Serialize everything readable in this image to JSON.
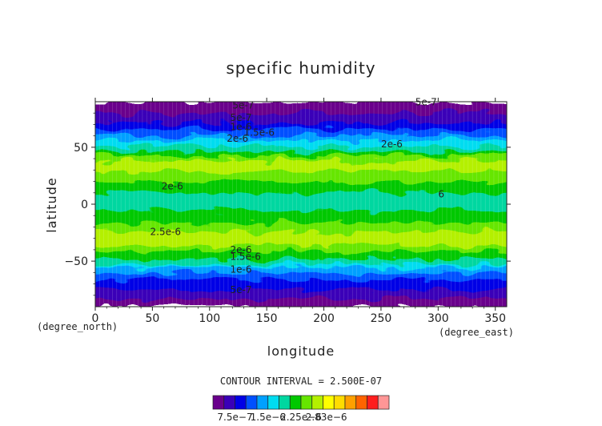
{
  "chart_data": {
    "type": "heatmap",
    "title": "specific humidity",
    "xlabel": "longitude",
    "ylabel": "latitude",
    "x_unit": "(degree_east)",
    "y_unit": "(degree_north)",
    "xlim": [
      0,
      360
    ],
    "ylim": [
      -90,
      90
    ],
    "x_ticks": [
      0,
      50,
      100,
      150,
      200,
      250,
      300,
      350
    ],
    "y_ticks": [
      50,
      0,
      -50
    ],
    "contour_interval_text": "CONTOUR INTERVAL = 2.500E-07",
    "colorbar": {
      "colors": [
        "#6a008c",
        "#3a00b8",
        "#0000e6",
        "#0050ff",
        "#00a0ff",
        "#00dcf0",
        "#00d7a0",
        "#00c800",
        "#66e600",
        "#b4f000",
        "#ffff00",
        "#ffdc00",
        "#ffa000",
        "#ff6400",
        "#ff1e1e",
        "#ff9696"
      ],
      "tick_labels": [
        "7.5e-7",
        "1.5e-6",
        "2.25e-6",
        "2.83e-6"
      ]
    },
    "lat_profile": {
      "lat": [
        -90,
        -85,
        -80,
        -75,
        -70,
        -65,
        -60,
        -55,
        -50,
        -45,
        -40,
        -35,
        -30,
        -25,
        -20,
        -15,
        -10,
        -5,
        0,
        5,
        10,
        15,
        20,
        25,
        30,
        35,
        40,
        45,
        50,
        55,
        60,
        65,
        70,
        75,
        80,
        85,
        90
      ],
      "value": [
        3e-07,
        4e-07,
        6e-07,
        7.5e-07,
        9e-07,
        1.05e-06,
        1.25e-06,
        1.5e-06,
        1.9e-06,
        2.1e-06,
        2.3e-06,
        2.6e-06,
        2.75e-06,
        2.55e-06,
        2.35e-06,
        2.2e-06,
        2.1e-06,
        2e-06,
        1.85e-06,
        1.85e-06,
        2e-06,
        2.15e-06,
        2.25e-06,
        2.35e-06,
        2.55e-06,
        2.65e-06,
        2.45e-06,
        2.1e-06,
        1.8e-06,
        1.6e-06,
        1.3e-06,
        1.05e-06,
        8e-07,
        6.5e-07,
        5e-07,
        4e-07,
        3e-07
      ]
    },
    "contour_labels": [
      {
        "text": "5e-7",
        "lon": 120,
        "lat": 84
      },
      {
        "text": "5e-7",
        "lon": 280,
        "lat": 87
      },
      {
        "text": "5e-7",
        "lon": 118,
        "lat": 73
      },
      {
        "text": "1e-6",
        "lon": 118,
        "lat": 65
      },
      {
        "text": "1.5e-6",
        "lon": 130,
        "lat": 60
      },
      {
        "text": "2e-6",
        "lon": 115,
        "lat": 55
      },
      {
        "text": "2e-6",
        "lon": 250,
        "lat": 50
      },
      {
        "text": "2e-6",
        "lon": 58,
        "lat": 13
      },
      {
        "text": "6",
        "lon": 300,
        "lat": 6
      },
      {
        "text": "2.5e-6",
        "lon": 48,
        "lat": -27
      },
      {
        "text": "2e-6",
        "lon": 118,
        "lat": -43
      },
      {
        "text": "1.5e-6",
        "lon": 118,
        "lat": -49
      },
      {
        "text": "1e-6",
        "lon": 118,
        "lat": -60
      },
      {
        "text": "5e-7",
        "lon": 118,
        "lat": -78
      }
    ]
  }
}
